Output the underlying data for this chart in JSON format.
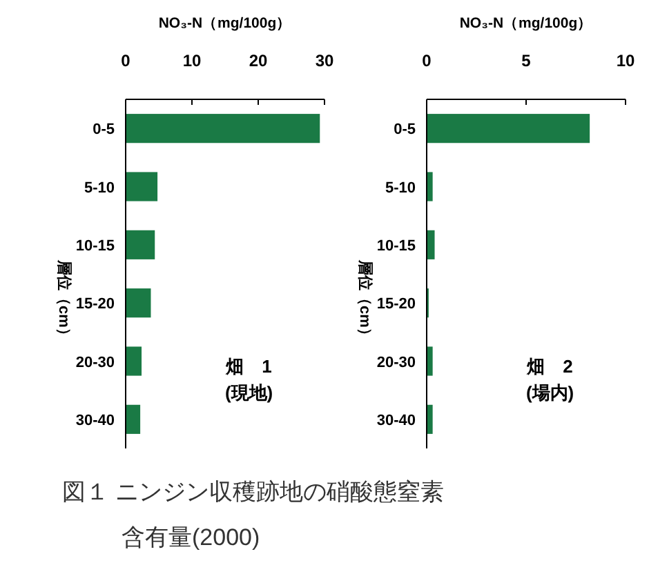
{
  "chart_data": [
    {
      "type": "bar",
      "orientation": "horizontal",
      "title": "図１ ニンジン収穫跡地の硝酸態窒素含有量(2000)",
      "xlabel": "NO₃-N（mg/100g）",
      "ylabel": "層位（cm）",
      "categories": [
        "0-5",
        "5-10",
        "10-15",
        "15-20",
        "20-30",
        "30-40"
      ],
      "values": [
        29.3,
        4.8,
        4.4,
        3.8,
        2.4,
        2.2
      ],
      "color": "#1a7a45",
      "xlim": [
        0,
        30
      ],
      "xticks": [
        0,
        10,
        20,
        30
      ],
      "annotations": [
        "畑　1",
        "(現地)"
      ],
      "grid": false
    },
    {
      "type": "bar",
      "orientation": "horizontal",
      "xlabel": "NO₃-N（mg/100g）",
      "ylabel": "層位（cm）",
      "categories": [
        "0-5",
        "5-10",
        "10-15",
        "15-20",
        "20-30",
        "30-40"
      ],
      "values": [
        8.2,
        0.3,
        0.4,
        0.1,
        0.3,
        0.3
      ],
      "color": "#1a7a45",
      "xlim": [
        0,
        10
      ],
      "xticks": [
        0,
        5,
        10
      ],
      "annotations": [
        "畑　2",
        "(場内)"
      ],
      "grid": false
    }
  ]
}
